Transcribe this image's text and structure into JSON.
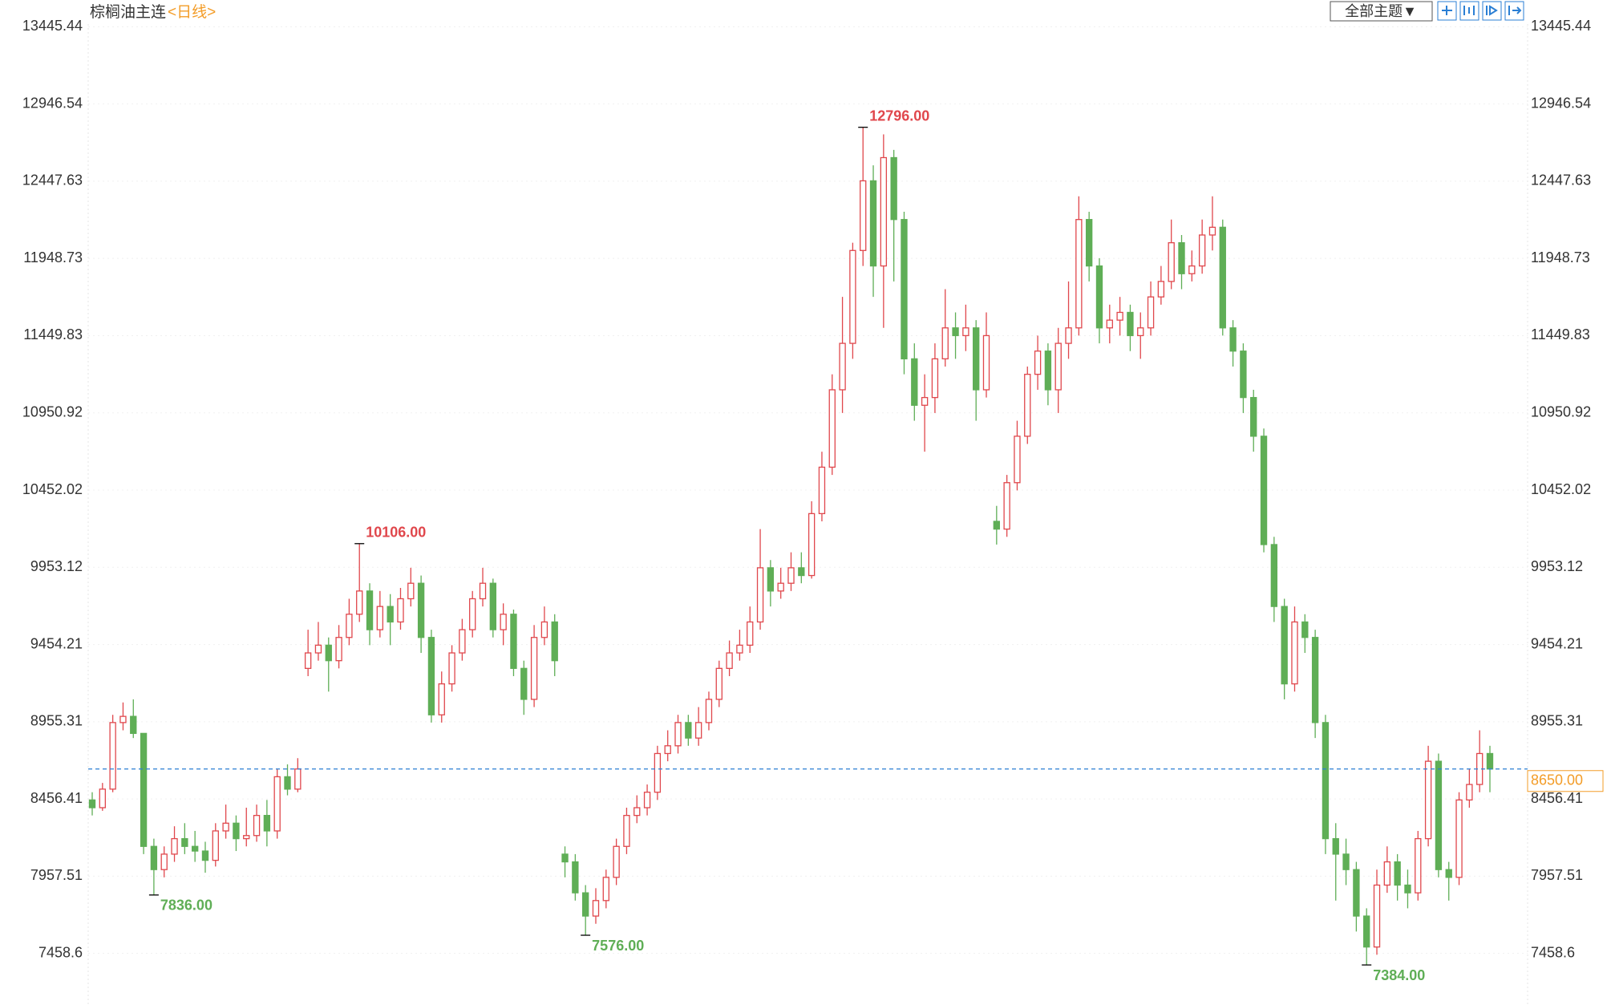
{
  "chart_data": {
    "type": "candlestick",
    "title": "棕榈油主连",
    "period": "<日线>",
    "theme_button": "全部主题▼",
    "up_color": "#e0474c",
    "down_color": "#5fae56",
    "grid": true,
    "ylim": [
      7146,
      13525
    ],
    "yticks": [
      7458.6,
      7957.51,
      8456.41,
      8955.31,
      9454.21,
      9953.12,
      10452.02,
      10950.92,
      11449.83,
      11948.73,
      12447.63,
      12946.54,
      13445.44
    ],
    "open": [
      8450,
      8400,
      8520,
      8950,
      8990,
      8880,
      8150,
      8000,
      8100,
      8200,
      8150,
      8120,
      8060,
      8250,
      8300,
      8200,
      8220,
      8350,
      8250,
      8600,
      8520,
      9300,
      9400,
      9450,
      9350,
      9500,
      9650,
      9800,
      9550,
      9700,
      9600,
      9750,
      9850,
      9500,
      9000,
      9200,
      9400,
      9550,
      9750,
      9850,
      9550,
      9650,
      9300,
      9100,
      9500,
      9600,
      8100,
      8050,
      7850,
      7700,
      7800,
      7950,
      8150,
      8350,
      8400,
      8500,
      8750,
      8800,
      8950,
      8850,
      8950,
      9100,
      9300,
      9400,
      9450,
      9600,
      9950,
      9800,
      9850,
      9950,
      9900,
      10300,
      10600,
      11100,
      11400,
      12000,
      12450,
      11900,
      12600,
      12200,
      11300,
      11000,
      11050,
      11300,
      11500,
      11450,
      11500,
      11100,
      10250,
      10200,
      10500,
      10800,
      11200,
      11350,
      11100,
      11400,
      11500,
      12200,
      11900,
      11500,
      11550,
      11600,
      11450,
      11500,
      11700,
      11800,
      12050,
      11850,
      11900,
      12100,
      12150,
      11500,
      11350,
      11050,
      10800,
      10100,
      9700,
      9200,
      9600,
      9500,
      8950,
      8200,
      8100,
      8000,
      7700,
      7500,
      7900,
      8050,
      7900,
      7850,
      8200,
      8700,
      8000,
      7950,
      8450,
      8550,
      8750
    ],
    "high": [
      8500,
      8560,
      9000,
      9080,
      9100,
      8880,
      8200,
      8150,
      8280,
      8300,
      8250,
      8180,
      8300,
      8420,
      8350,
      8400,
      8420,
      8450,
      8650,
      8680,
      8720,
      9550,
      9600,
      9500,
      9580,
      9750,
      10106,
      9850,
      9800,
      9780,
      9820,
      9950,
      9900,
      9550,
      9280,
      9450,
      9620,
      9800,
      9950,
      9880,
      9720,
      9680,
      9350,
      9580,
      9700,
      9650,
      8150,
      8100,
      7900,
      7880,
      8000,
      8200,
      8400,
      8480,
      8550,
      8800,
      8900,
      9000,
      9000,
      9050,
      9150,
      9350,
      9480,
      9550,
      9700,
      10200,
      10000,
      9950,
      10050,
      10050,
      10380,
      10700,
      11200,
      11700,
      12050,
      12796,
      12550,
      12750,
      12650,
      12250,
      11400,
      11200,
      11400,
      11750,
      11600,
      11650,
      11550,
      11600,
      10350,
      10550,
      10900,
      11250,
      11450,
      11400,
      11500,
      11800,
      12350,
      12250,
      11950,
      11650,
      11700,
      11650,
      11600,
      11800,
      11900,
      12200,
      12100,
      12000,
      12200,
      12350,
      12200,
      11550,
      11400,
      11100,
      10850,
      10150,
      9750,
      9700,
      9650,
      9550,
      9000,
      8300,
      8200,
      8050,
      7750,
      8000,
      8150,
      8100,
      8000,
      8250,
      8800,
      8750,
      8050,
      8500,
      8650,
      8900,
      8800
    ],
    "low": [
      8350,
      8380,
      8500,
      8900,
      8850,
      8100,
      7836,
      7950,
      8050,
      8100,
      8050,
      7980,
      8020,
      8200,
      8120,
      8150,
      8180,
      8150,
      8200,
      8480,
      8500,
      9250,
      9350,
      9150,
      9300,
      9450,
      9600,
      9450,
      9500,
      9450,
      9550,
      9700,
      9400,
      8950,
      8950,
      9150,
      9350,
      9500,
      9700,
      9500,
      9450,
      9250,
      9000,
      9050,
      9450,
      9250,
      7950,
      7800,
      7576,
      7650,
      7750,
      7900,
      8100,
      8300,
      8350,
      8450,
      8700,
      8750,
      8800,
      8800,
      8900,
      9050,
      9250,
      9350,
      9400,
      9550,
      9700,
      9750,
      9800,
      9850,
      9880,
      10250,
      10550,
      10950,
      11300,
      11900,
      11700,
      11500,
      11800,
      11200,
      10900,
      10700,
      10950,
      11250,
      11300,
      11350,
      10900,
      11050,
      10100,
      10150,
      10450,
      10750,
      11100,
      11000,
      10950,
      11300,
      11450,
      11800,
      11400,
      11400,
      11450,
      11350,
      11300,
      11450,
      11650,
      11750,
      11750,
      11800,
      11850,
      12000,
      11450,
      11250,
      10950,
      10700,
      10050,
      9600,
      9100,
      9150,
      9400,
      8850,
      8100,
      7800,
      7900,
      7600,
      7384,
      7450,
      7850,
      7800,
      7750,
      7800,
      8150,
      7950,
      7800,
      7900,
      8400,
      8500,
      8500
    ],
    "close": [
      8400,
      8520,
      8950,
      8990,
      8880,
      8150,
      8000,
      8100,
      8200,
      8150,
      8120,
      8060,
      8250,
      8300,
      8200,
      8220,
      8350,
      8250,
      8600,
      8520,
      8650,
      9400,
      9450,
      9350,
      9500,
      9650,
      9800,
      9550,
      9700,
      9600,
      9750,
      9850,
      9500,
      9000,
      9200,
      9400,
      9550,
      9750,
      9850,
      9550,
      9650,
      9300,
      9100,
      9500,
      9600,
      9350,
      8050,
      7850,
      7700,
      7800,
      7950,
      8150,
      8350,
      8400,
      8500,
      8750,
      8800,
      8950,
      8850,
      8950,
      9100,
      9300,
      9400,
      9450,
      9600,
      9950,
      9800,
      9850,
      9950,
      9900,
      10300,
      10600,
      11100,
      11400,
      12000,
      12450,
      11900,
      12600,
      12200,
      11300,
      11000,
      11050,
      11300,
      11500,
      11450,
      11500,
      11100,
      11450,
      10200,
      10500,
      10800,
      11200,
      11350,
      11100,
      11400,
      11500,
      12200,
      11900,
      11500,
      11550,
      11600,
      11450,
      11500,
      11700,
      11800,
      12050,
      11850,
      11900,
      12100,
      12150,
      11500,
      11350,
      11050,
      10800,
      10100,
      9700,
      9200,
      9600,
      9500,
      8950,
      8200,
      8100,
      8000,
      7700,
      7500,
      7900,
      8050,
      7900,
      7850,
      8200,
      8700,
      8000,
      7950,
      8450,
      8550,
      8750,
      8650
    ],
    "annotations": [
      {
        "label": "10106.00",
        "value": 10106,
        "kind": "high"
      },
      {
        "label": "12796.00",
        "value": 12796,
        "kind": "high"
      },
      {
        "label": "7836.00",
        "value": 7836,
        "kind": "low"
      },
      {
        "label": "7576.00",
        "value": 7576,
        "kind": "low"
      },
      {
        "label": "7384.00",
        "value": 7384,
        "kind": "low"
      }
    ],
    "last": {
      "value": 8650,
      "label": "8650.00",
      "color": "#f39c27",
      "line_color": "#2b7fd4"
    }
  }
}
